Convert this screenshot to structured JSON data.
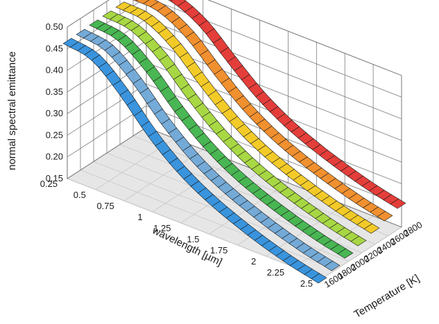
{
  "chart_data": {
    "type": "surface-ribbon-3d",
    "title": "",
    "xlabel": "wavelength [µm]",
    "ylabel": "Temperature [K]",
    "zlabel": "normal spectral emittance",
    "x_ticks": [
      "0.25",
      "0.5",
      "0.75",
      "1",
      "1.25",
      "1.5",
      "1.75",
      "2",
      "2.25",
      "2.5"
    ],
    "y_ticks": [
      "1600",
      "1800",
      "2000",
      "2200",
      "2400",
      "2600",
      "2800"
    ],
    "z_ticks": [
      "0.15",
      "0.20",
      "0.25",
      "0.30",
      "0.35",
      "0.40",
      "0.45",
      "0.50"
    ],
    "xlim": [
      0.25,
      2.5
    ],
    "ylim": [
      1600,
      2800
    ],
    "zlim": [
      0.15,
      0.5
    ],
    "grid": true,
    "x": [
      0.25,
      0.5,
      0.75,
      1.0,
      1.25,
      1.5,
      1.75,
      2.0,
      2.25,
      2.5
    ],
    "series": [
      {
        "temperature": 1600,
        "color": "#2f8fdc",
        "values": [
          0.468,
          0.455,
          0.4,
          0.33,
          0.275,
          0.235,
          0.205,
          0.18,
          0.16,
          0.145
        ]
      },
      {
        "temperature": 1800,
        "color": "#6ea6d6",
        "values": [
          0.469,
          0.458,
          0.407,
          0.339,
          0.284,
          0.244,
          0.214,
          0.189,
          0.169,
          0.154
        ]
      },
      {
        "temperature": 2000,
        "color": "#3fb34a",
        "values": [
          0.471,
          0.461,
          0.414,
          0.348,
          0.293,
          0.252,
          0.222,
          0.198,
          0.178,
          0.163
        ]
      },
      {
        "temperature": 2200,
        "color": "#a3d63a",
        "values": [
          0.472,
          0.464,
          0.421,
          0.357,
          0.302,
          0.261,
          0.231,
          0.207,
          0.187,
          0.172
        ]
      },
      {
        "temperature": 2400,
        "color": "#f2c81e",
        "values": [
          0.473,
          0.467,
          0.428,
          0.366,
          0.311,
          0.27,
          0.24,
          0.216,
          0.196,
          0.181
        ]
      },
      {
        "temperature": 2600,
        "color": "#f08a24",
        "values": [
          0.474,
          0.47,
          0.435,
          0.375,
          0.32,
          0.279,
          0.249,
          0.225,
          0.205,
          0.19
        ]
      },
      {
        "temperature": 2800,
        "color": "#e3342f",
        "values": [
          0.475,
          0.473,
          0.442,
          0.384,
          0.329,
          0.288,
          0.258,
          0.234,
          0.214,
          0.199
        ]
      }
    ]
  }
}
